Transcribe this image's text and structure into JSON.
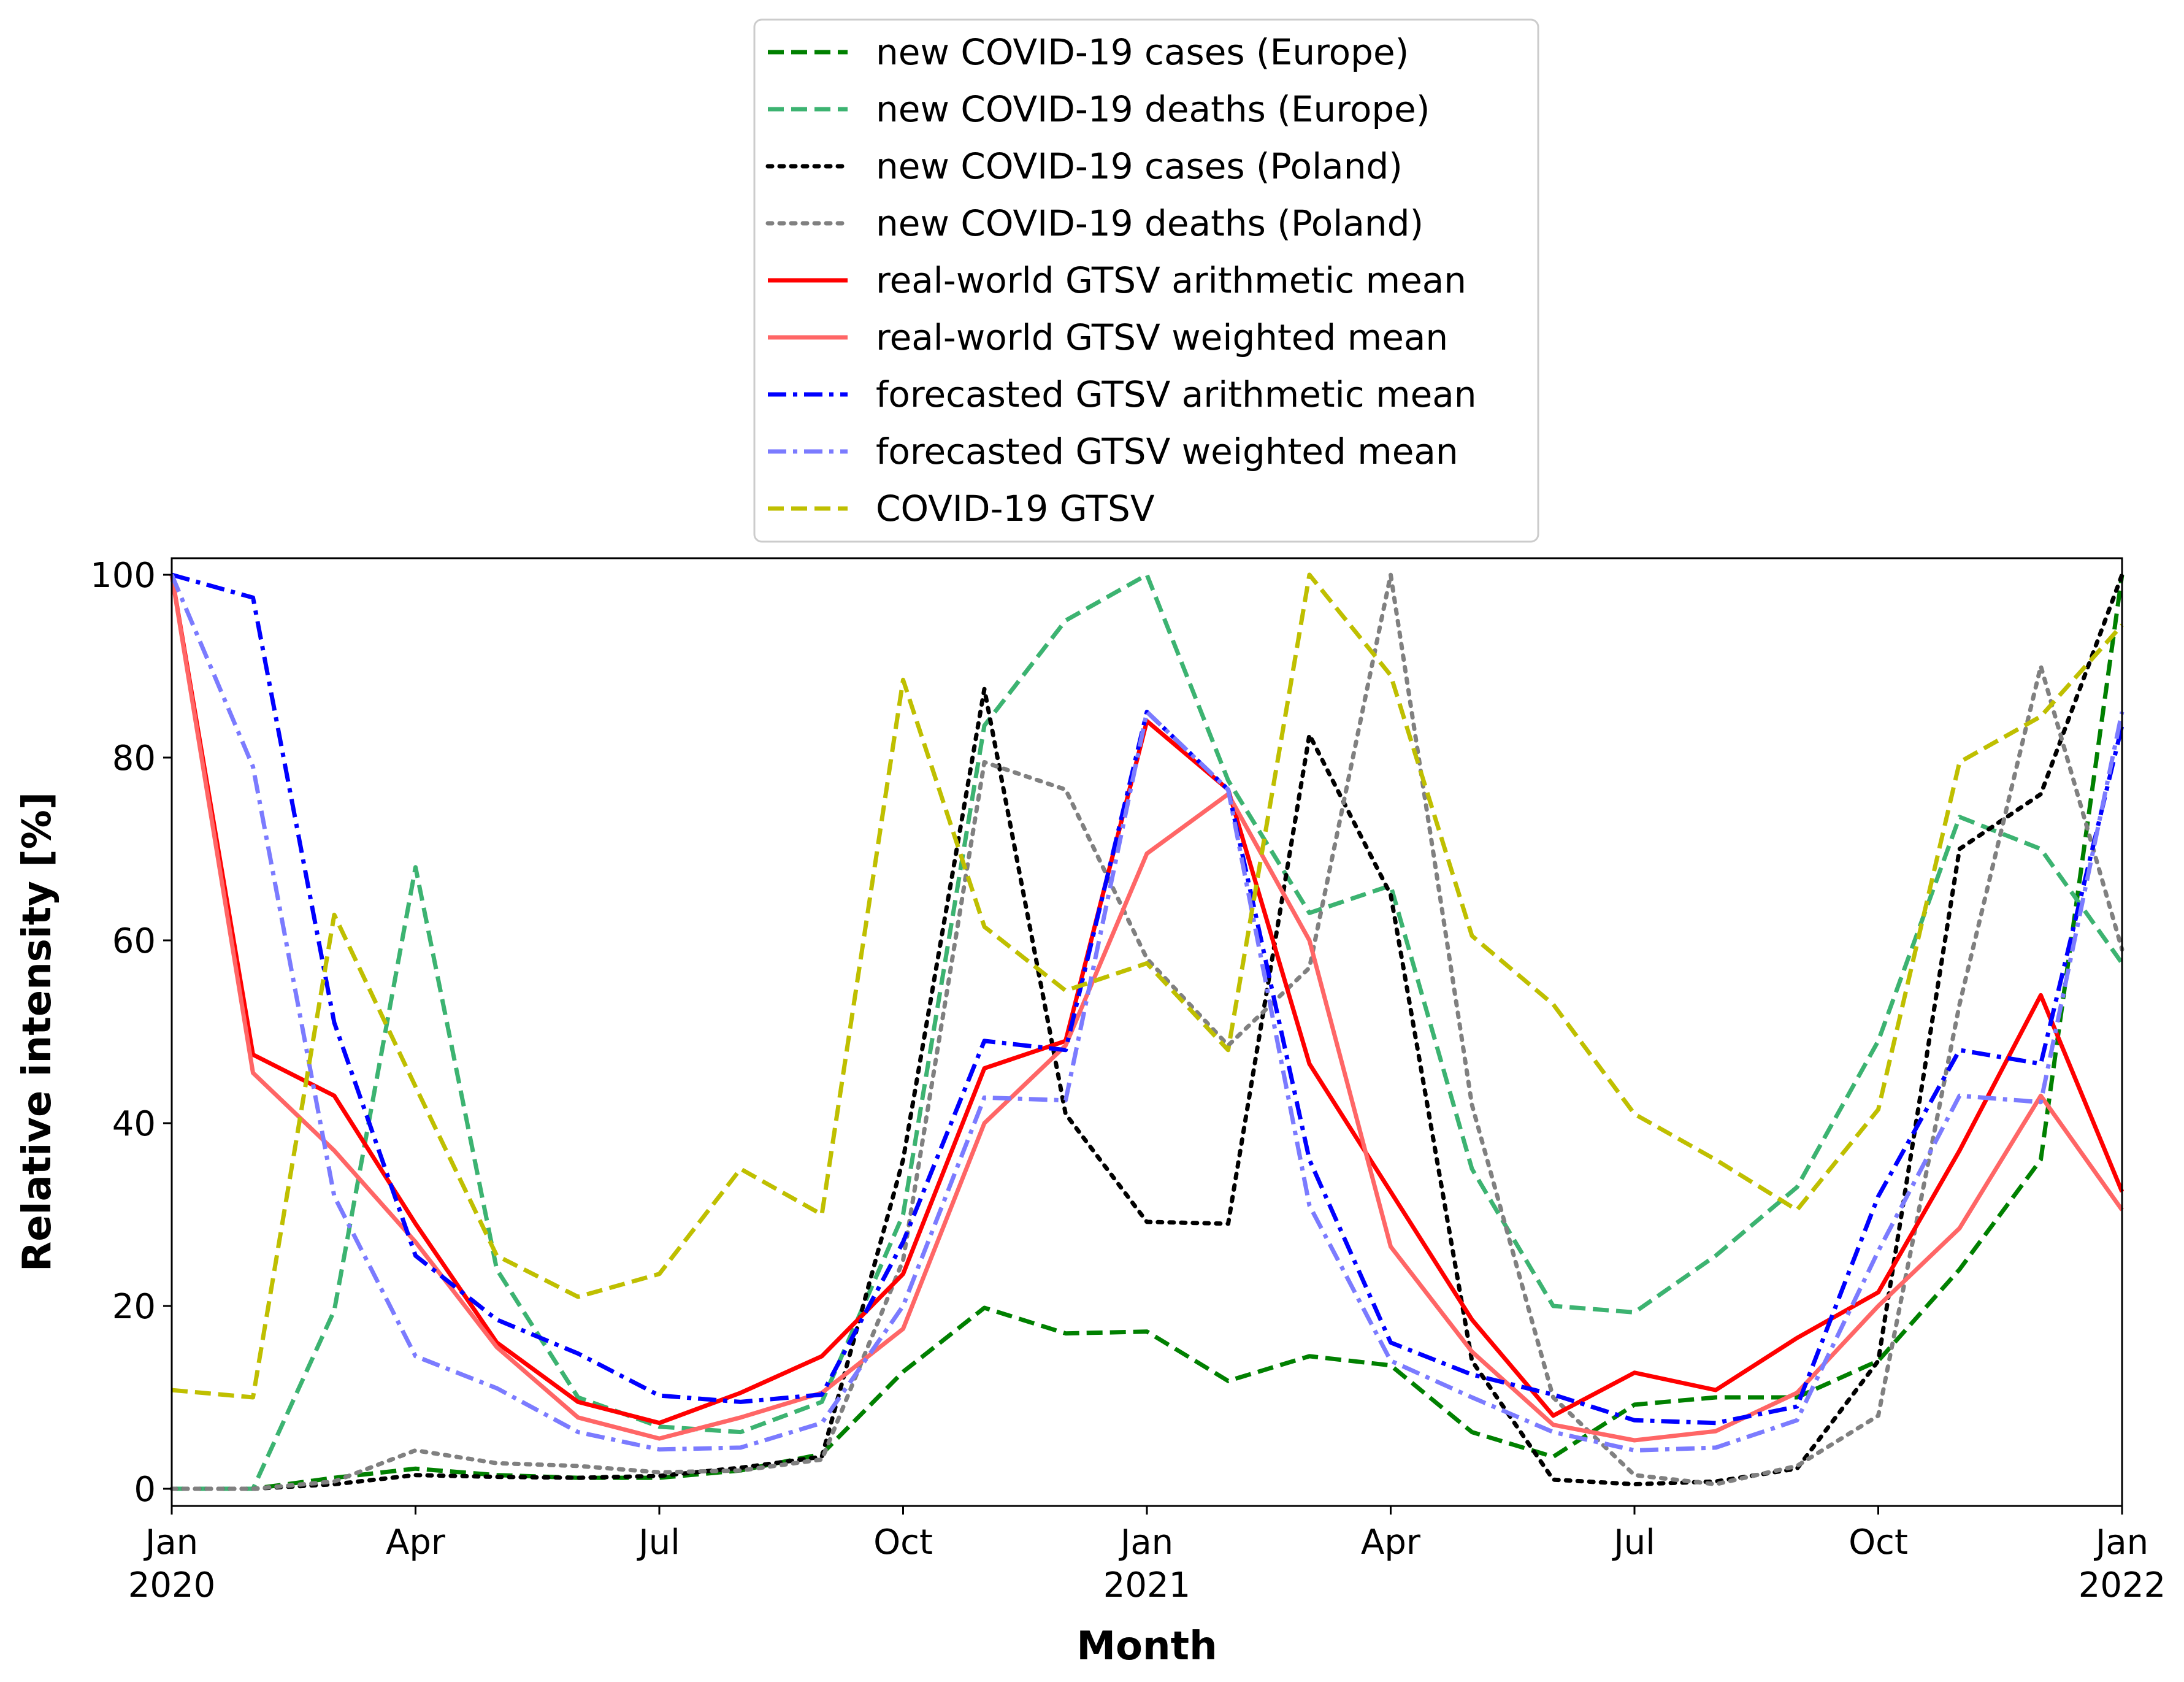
{
  "chart_data": {
    "type": "line",
    "title": "",
    "xlabel": "Month",
    "ylabel": "Relative intensity [%]",
    "ylim": [
      0,
      100
    ],
    "xlim": [
      0,
      24
    ],
    "grid": false,
    "legend_position": "top-center (above plot)",
    "x_ticks": [
      {
        "x": 0,
        "line1": "Jan",
        "line2": "2020"
      },
      {
        "x": 3,
        "line1": "Apr",
        "line2": ""
      },
      {
        "x": 6,
        "line1": "Jul",
        "line2": ""
      },
      {
        "x": 9,
        "line1": "Oct",
        "line2": ""
      },
      {
        "x": 12,
        "line1": "Jan",
        "line2": "2021"
      },
      {
        "x": 15,
        "line1": "Apr",
        "line2": ""
      },
      {
        "x": 18,
        "line1": "Jul",
        "line2": ""
      },
      {
        "x": 21,
        "line1": "Oct",
        "line2": ""
      },
      {
        "x": 24,
        "line1": "Jan",
        "line2": "2022"
      }
    ],
    "y_ticks": [
      0,
      20,
      40,
      60,
      80,
      100
    ],
    "series": [
      {
        "name": "new COVID-19 cases (Europe)",
        "color": "#008000",
        "style": "dashed",
        "width": 7,
        "values": [
          0,
          0,
          1.2,
          2.2,
          1.5,
          1.2,
          1.2,
          2.0,
          3.8,
          12.8,
          19.8,
          17.0,
          17.2,
          11.8,
          14.5,
          13.5,
          6.2,
          3.5,
          9.2,
          10.0,
          10.0,
          14.0,
          24.0,
          36.0,
          100
        ]
      },
      {
        "name": "new COVID-19 deaths (Europe)",
        "color": "#3cb371",
        "style": "dashed",
        "width": 7,
        "values": [
          0,
          0,
          19.5,
          68.0,
          24.0,
          10.0,
          6.8,
          6.2,
          9.5,
          30.0,
          83.5,
          95.0,
          100,
          77.5,
          63.0,
          66.0,
          35.0,
          20.0,
          19.3,
          25.5,
          33.0,
          49.0,
          73.5,
          70.0,
          57.5
        ]
      },
      {
        "name": "new COVID-19 cases (Poland)",
        "color": "#000000",
        "style": "dotted",
        "width": 7,
        "values": [
          0,
          0,
          0.5,
          1.5,
          1.3,
          1.2,
          1.4,
          2.3,
          3.5,
          36.0,
          87.5,
          41.0,
          29.2,
          29.0,
          82.5,
          65.0,
          14.0,
          1.0,
          0.5,
          0.8,
          2.2,
          14.0,
          70.0,
          76.0,
          100
        ]
      },
      {
        "name": "new COVID-19 deaths (Poland)",
        "color": "#808080",
        "style": "dotted",
        "width": 7,
        "values": [
          0,
          0,
          0.8,
          4.2,
          2.8,
          2.5,
          1.8,
          2.0,
          3.2,
          25.0,
          79.5,
          76.5,
          58.0,
          48.5,
          57.0,
          100,
          42.0,
          10.0,
          1.5,
          0.5,
          2.5,
          8.0,
          53.0,
          90.0,
          59.0
        ]
      },
      {
        "name": "real-world GTSV arithmetic mean",
        "color": "#ff0000",
        "style": "solid",
        "width": 7,
        "values": [
          100,
          47.5,
          43.0,
          29.0,
          16.0,
          9.5,
          7.2,
          10.5,
          14.5,
          23.5,
          46.0,
          49.0,
          84.0,
          76.5,
          46.5,
          32.5,
          18.5,
          8.0,
          12.7,
          10.8,
          16.5,
          21.5,
          37.0,
          54.0,
          32.5
        ]
      },
      {
        "name": "real-world GTSV weighted mean",
        "color": "#ff6666",
        "style": "solid",
        "width": 7,
        "values": [
          100,
          45.5,
          37.0,
          27.0,
          15.5,
          7.8,
          5.5,
          7.8,
          10.5,
          17.5,
          40.0,
          48.5,
          69.5,
          76.0,
          60.0,
          26.5,
          15.0,
          7.0,
          5.3,
          6.3,
          10.5,
          20.0,
          28.5,
          43.0,
          30.5
        ]
      },
      {
        "name": "forecasted GTSV arithmetic mean",
        "color": "#0000ff",
        "style": "dashdot",
        "width": 7,
        "values": [
          100,
          97.5,
          51.0,
          25.5,
          18.5,
          14.8,
          10.2,
          9.5,
          10.3,
          27.0,
          49.0,
          48.0,
          85.0,
          76.5,
          36.0,
          16.0,
          12.5,
          10.3,
          7.5,
          7.2,
          9.0,
          32.0,
          48.0,
          46.5,
          83.5
        ]
      },
      {
        "name": "forecasted GTSV weighted mean",
        "color": "#7b7bff",
        "style": "dashdot",
        "width": 7,
        "values": [
          100,
          79.0,
          32.0,
          14.5,
          11.0,
          6.2,
          4.3,
          4.5,
          7.2,
          20.0,
          42.8,
          42.5,
          85.0,
          76.5,
          31.0,
          14.0,
          10.0,
          6.2,
          4.2,
          4.5,
          7.5,
          26.0,
          43.0,
          42.3,
          85.0
        ]
      },
      {
        "name": "COVID-19 GTSV",
        "color": "#bfbf00",
        "style": "dashed",
        "width": 7,
        "values": [
          10.8,
          10.0,
          62.8,
          44.0,
          25.5,
          21.0,
          23.5,
          35.0,
          30.0,
          88.5,
          61.5,
          54.5,
          57.5,
          48.0,
          100,
          89.0,
          60.5,
          53.0,
          41.0,
          36.0,
          30.5,
          41.5,
          79.5,
          84.5,
          94.5
        ]
      }
    ]
  }
}
